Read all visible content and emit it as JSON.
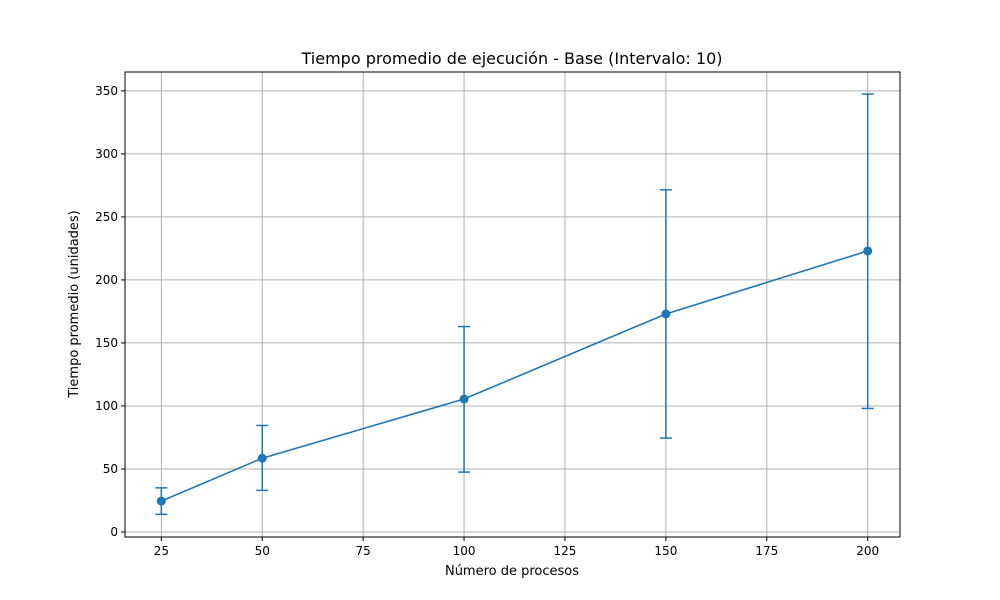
{
  "chart_data": {
    "type": "line",
    "title": "Tiempo promedio de ejecución - Base (Intervalo: 10)",
    "xlabel": "Número de procesos",
    "ylabel": "Tiempo promedio (unidades)",
    "xlim": [
      16,
      208
    ],
    "ylim": [
      -4,
      365
    ],
    "xticks": [
      25,
      50,
      75,
      100,
      125,
      150,
      175,
      200
    ],
    "yticks": [
      0,
      50,
      100,
      150,
      200,
      250,
      300,
      350
    ],
    "grid": true,
    "series": [
      {
        "color": "#1f77b4",
        "x": [
          25,
          50,
          100,
          150,
          200
        ],
        "y": [
          24.5,
          58.5,
          105.5,
          173,
          223
        ],
        "err_low": [
          14,
          33,
          47.5,
          74.5,
          98
        ],
        "err_high": [
          35,
          84.5,
          163,
          271.5,
          347.5
        ]
      }
    ]
  }
}
